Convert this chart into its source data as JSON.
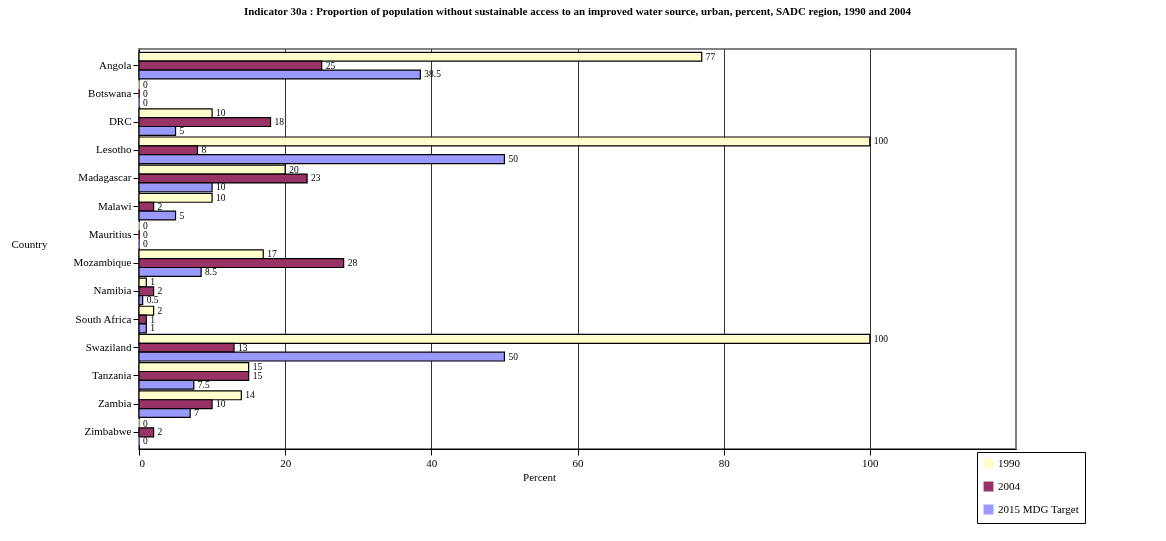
{
  "chart_data": {
    "type": "bar",
    "orientation": "horizontal",
    "title": "Indicator 30a : Proportion of population without sustainable access to an improved water source, urban, percent,  SADC region, 1990 and 2004",
    "xlabel": "Percent",
    "ylabel": "Country",
    "categories": [
      "Angola",
      "Botswana",
      "DRC",
      "Lesotho",
      "Madagascar",
      "Malawi",
      "Mauritius",
      "Mozambique",
      "Namibia",
      "South Africa",
      "Swaziland",
      "Tanzania",
      "Zambia",
      "Zimbabwe"
    ],
    "series": [
      {
        "name": "1990",
        "color": "#ffffcc",
        "values": [
          77,
          0,
          10,
          100,
          20,
          10,
          0,
          17,
          1,
          2,
          100,
          15,
          14,
          0
        ]
      },
      {
        "name": "2004",
        "color": "#993366",
        "values": [
          25,
          0,
          18,
          8,
          23,
          2,
          0,
          28,
          2,
          1,
          13,
          15,
          10,
          2
        ]
      },
      {
        "name": "2015 MDG Target",
        "color": "#9999ff",
        "values": [
          38.5,
          0,
          5,
          50,
          10,
          5,
          0,
          8.5,
          0.5,
          1,
          50,
          7.5,
          7,
          0
        ]
      }
    ],
    "xlim": [
      0,
      120
    ],
    "xticks": [
      0,
      20,
      40,
      60,
      80,
      100
    ],
    "grid": "x",
    "legend": "bottom right",
    "data_labels": true
  }
}
